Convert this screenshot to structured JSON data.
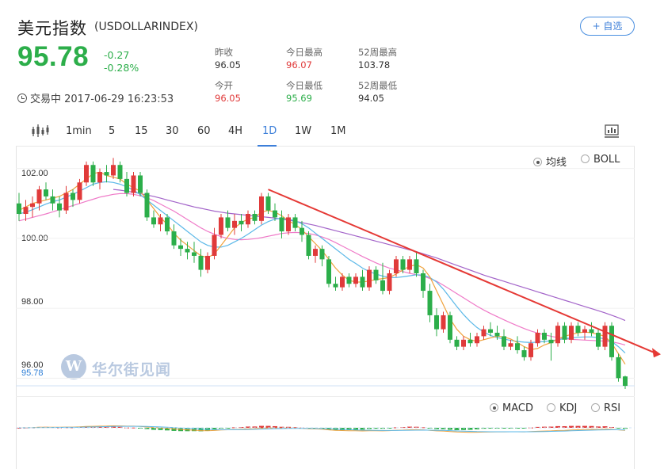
{
  "header": {
    "title": "美元指数",
    "code": "(USDOLLARINDEX)",
    "follow": "+ 自选"
  },
  "quote": {
    "price": "95.78",
    "change": "-0.27",
    "change_pct": "-0.28%",
    "status": "交易中 2017-06-29 16:23:53"
  },
  "stats": [
    {
      "label": "昨收",
      "value": "96.05",
      "color": "dark"
    },
    {
      "label": "今日最高",
      "value": "96.07",
      "color": "red"
    },
    {
      "label": "52周最高",
      "value": "103.78",
      "color": "dark"
    },
    {
      "label": "今开",
      "value": "96.05",
      "color": "red"
    },
    {
      "label": "今日最低",
      "value": "95.69",
      "color": "green"
    },
    {
      "label": "52周最低",
      "value": "94.05",
      "color": "dark"
    }
  ],
  "toolbar": {
    "intervals": [
      "1min",
      "5",
      "15",
      "30",
      "60",
      "4H",
      "1D",
      "1W",
      "1M"
    ],
    "active": "1D"
  },
  "overlay": {
    "ma": "均线",
    "boll": "BOLL",
    "selected": "均线"
  },
  "indicators": {
    "macd": "MACD",
    "kdj": "KDJ",
    "rsi": "RSI",
    "selected": "MACD"
  },
  "watermark": "华尔街见闻",
  "colors": {
    "up": "#e03a3a",
    "down": "#2cae4a",
    "ma5": "#f0a23c",
    "ma10": "#5bb8e8",
    "ma20": "#ef7ac8",
    "ma60": "#a364c9",
    "trend": "#e53935"
  },
  "chart_data": {
    "type": "candlestick",
    "yticks": [
      "102.00",
      "100.00",
      "98.00",
      "96.00"
    ],
    "last_price_label": "95.78",
    "ylim": [
      95.6,
      102.4
    ],
    "candles": [
      [
        101.0,
        101.3,
        100.5,
        100.7
      ],
      [
        100.7,
        101.1,
        100.5,
        100.9
      ],
      [
        100.9,
        101.2,
        100.6,
        101.0
      ],
      [
        101.0,
        101.5,
        100.8,
        101.4
      ],
      [
        101.4,
        101.6,
        101.1,
        101.2
      ],
      [
        101.2,
        101.4,
        100.8,
        101.0
      ],
      [
        101.0,
        101.2,
        100.6,
        100.8
      ],
      [
        100.8,
        101.5,
        100.7,
        101.3
      ],
      [
        101.3,
        101.4,
        100.9,
        101.1
      ],
      [
        101.1,
        101.7,
        101.0,
        101.6
      ],
      [
        101.6,
        102.2,
        101.5,
        102.1
      ],
      [
        102.1,
        102.2,
        101.5,
        101.6
      ],
      [
        101.6,
        102.0,
        101.4,
        101.9
      ],
      [
        101.9,
        102.1,
        101.6,
        101.8
      ],
      [
        101.8,
        102.3,
        101.7,
        102.1
      ],
      [
        102.1,
        102.2,
        101.6,
        101.7
      ],
      [
        101.7,
        101.9,
        101.2,
        101.3
      ],
      [
        101.3,
        101.9,
        101.2,
        101.8
      ],
      [
        101.8,
        101.9,
        101.2,
        101.3
      ],
      [
        101.3,
        101.4,
        100.5,
        100.6
      ],
      [
        100.6,
        100.8,
        100.3,
        100.4
      ],
      [
        100.4,
        100.7,
        100.2,
        100.6
      ],
      [
        100.6,
        100.7,
        100.1,
        100.2
      ],
      [
        100.2,
        100.4,
        99.7,
        99.8
      ],
      [
        99.8,
        100.0,
        99.5,
        99.7
      ],
      [
        99.7,
        99.9,
        99.4,
        99.6
      ],
      [
        99.6,
        99.9,
        99.3,
        99.5
      ],
      [
        99.5,
        99.7,
        98.9,
        99.1
      ],
      [
        99.1,
        99.6,
        99.0,
        99.5
      ],
      [
        99.5,
        100.3,
        99.4,
        100.1
      ],
      [
        100.1,
        100.7,
        100.0,
        100.6
      ],
      [
        100.6,
        100.8,
        100.2,
        100.3
      ],
      [
        100.3,
        100.7,
        100.1,
        100.5
      ],
      [
        100.5,
        100.7,
        100.2,
        100.4
      ],
      [
        100.4,
        100.8,
        100.3,
        100.7
      ],
      [
        100.7,
        100.8,
        100.4,
        100.5
      ],
      [
        100.5,
        101.3,
        100.4,
        101.2
      ],
      [
        101.2,
        101.3,
        100.7,
        100.8
      ],
      [
        100.8,
        101.0,
        100.5,
        100.6
      ],
      [
        100.6,
        100.8,
        100.0,
        100.2
      ],
      [
        100.2,
        100.7,
        100.1,
        100.6
      ],
      [
        100.6,
        100.7,
        100.2,
        100.3
      ],
      [
        100.3,
        100.5,
        99.9,
        100.1
      ],
      [
        100.1,
        100.2,
        99.4,
        99.5
      ],
      [
        99.5,
        99.8,
        99.3,
        99.7
      ],
      [
        99.7,
        99.8,
        99.2,
        99.4
      ],
      [
        99.4,
        99.5,
        98.6,
        98.7
      ],
      [
        98.7,
        98.9,
        98.5,
        98.6
      ],
      [
        98.6,
        99.0,
        98.5,
        98.9
      ],
      [
        98.9,
        99.0,
        98.6,
        98.7
      ],
      [
        98.7,
        99.0,
        98.6,
        98.9
      ],
      [
        98.9,
        99.1,
        98.5,
        98.6
      ],
      [
        98.6,
        99.2,
        98.5,
        99.1
      ],
      [
        99.1,
        99.2,
        98.7,
        98.8
      ],
      [
        98.8,
        99.3,
        98.4,
        98.5
      ],
      [
        98.5,
        99.1,
        98.4,
        99.0
      ],
      [
        99.0,
        99.5,
        98.9,
        99.4
      ],
      [
        99.4,
        99.5,
        99.0,
        99.1
      ],
      [
        99.1,
        99.5,
        99.0,
        99.4
      ],
      [
        99.4,
        99.6,
        98.9,
        99.0
      ],
      [
        99.0,
        99.1,
        98.3,
        98.5
      ],
      [
        98.5,
        98.7,
        97.6,
        97.8
      ],
      [
        97.8,
        98.0,
        97.2,
        97.4
      ],
      [
        97.4,
        97.9,
        97.3,
        97.8
      ],
      [
        97.8,
        97.9,
        97.0,
        97.1
      ],
      [
        97.1,
        97.2,
        96.8,
        96.9
      ],
      [
        96.9,
        97.2,
        96.8,
        97.1
      ],
      [
        97.1,
        97.3,
        96.9,
        97.0
      ],
      [
        97.0,
        97.3,
        96.9,
        97.2
      ],
      [
        97.2,
        97.5,
        97.1,
        97.4
      ],
      [
        97.4,
        97.6,
        97.2,
        97.3
      ],
      [
        97.3,
        97.5,
        97.1,
        97.2
      ],
      [
        97.2,
        97.4,
        96.8,
        96.9
      ],
      [
        96.9,
        97.1,
        96.8,
        97.0
      ],
      [
        97.0,
        97.2,
        96.7,
        96.8
      ],
      [
        96.8,
        96.9,
        96.5,
        96.6
      ],
      [
        96.6,
        97.1,
        96.5,
        97.0
      ],
      [
        97.0,
        97.4,
        96.9,
        97.3
      ],
      [
        97.3,
        97.4,
        97.0,
        97.1
      ],
      [
        97.1,
        97.3,
        96.5,
        97.0
      ],
      [
        97.0,
        97.6,
        96.9,
        97.5
      ],
      [
        97.5,
        97.6,
        97.0,
        97.1
      ],
      [
        97.1,
        97.6,
        97.0,
        97.5
      ],
      [
        97.5,
        97.6,
        97.2,
        97.3
      ],
      [
        97.3,
        97.5,
        97.1,
        97.4
      ],
      [
        97.4,
        97.6,
        97.2,
        97.3
      ],
      [
        97.3,
        97.4,
        96.8,
        96.9
      ],
      [
        96.9,
        97.6,
        96.8,
        97.5
      ],
      [
        97.5,
        97.6,
        96.5,
        96.6
      ],
      [
        96.6,
        96.7,
        95.9,
        96.0
      ],
      [
        96.05,
        96.07,
        95.69,
        95.78
      ]
    ],
    "ma5": [
      100.8,
      100.9,
      101.0,
      101.05,
      101.1,
      101.15,
      101.2,
      101.3,
      101.4,
      101.55,
      101.7,
      101.85,
      101.9,
      101.8,
      101.75,
      101.7,
      101.55,
      101.45,
      101.35,
      101.1,
      100.85,
      100.6,
      100.4,
      100.15,
      99.95,
      99.8,
      99.65,
      99.5,
      99.45,
      99.55,
      99.8,
      100.05,
      100.3,
      100.45,
      100.55,
      100.6,
      100.75,
      100.8,
      100.75,
      100.65,
      100.5,
      100.4,
      100.25,
      100.05,
      99.85,
      99.65,
      99.4,
      99.15,
      98.95,
      98.8,
      98.75,
      98.75,
      98.78,
      98.82,
      98.85,
      98.88,
      98.98,
      99.1,
      99.2,
      99.25,
      99.15,
      98.9,
      98.5,
      98.1,
      97.7,
      97.4,
      97.2,
      97.1,
      97.05,
      97.1,
      97.15,
      97.2,
      97.18,
      97.12,
      97.02,
      96.9,
      96.82,
      96.85,
      96.95,
      97.02,
      97.12,
      97.2,
      97.25,
      97.3,
      97.32,
      97.3,
      97.25,
      97.2,
      97.0,
      96.7,
      96.4
    ],
    "ma10": [
      100.7,
      100.75,
      100.82,
      100.9,
      100.98,
      101.05,
      101.1,
      101.18,
      101.26,
      101.35,
      101.45,
      101.55,
      101.6,
      101.62,
      101.6,
      101.55,
      101.47,
      101.38,
      101.25,
      101.1,
      100.95,
      100.8,
      100.65,
      100.5,
      100.35,
      100.2,
      100.05,
      99.9,
      99.8,
      99.75,
      99.75,
      99.8,
      99.9,
      100.0,
      100.12,
      100.25,
      100.38,
      100.48,
      100.55,
      100.58,
      100.55,
      100.5,
      100.42,
      100.3,
      100.15,
      100.0,
      99.85,
      99.7,
      99.55,
      99.4,
      99.28,
      99.15,
      99.05,
      98.98,
      98.92,
      98.88,
      98.88,
      98.9,
      98.93,
      98.96,
      98.95,
      98.88,
      98.75,
      98.55,
      98.3,
      98.05,
      97.82,
      97.62,
      97.45,
      97.32,
      97.22,
      97.16,
      97.12,
      97.08,
      97.05,
      97.03,
      97.02,
      97.03,
      97.05,
      97.07,
      97.1,
      97.13,
      97.15,
      97.17,
      97.18,
      97.18,
      97.16,
      97.12,
      97.05,
      96.9,
      96.72
    ],
    "ma20": [
      100.5,
      100.55,
      100.6,
      100.65,
      100.7,
      100.76,
      100.82,
      100.88,
      100.94,
      101.0,
      101.06,
      101.12,
      101.18,
      101.22,
      101.26,
      101.28,
      101.28,
      101.26,
      101.22,
      101.16,
      101.08,
      100.98,
      100.88,
      100.78,
      100.66,
      100.54,
      100.42,
      100.3,
      100.2,
      100.12,
      100.05,
      100.0,
      99.97,
      99.96,
      99.97,
      99.99,
      100.02,
      100.06,
      100.1,
      100.14,
      100.16,
      100.17,
      100.16,
      100.14,
      100.1,
      100.04,
      99.97,
      99.88,
      99.78,
      99.68,
      99.58,
      99.48,
      99.39,
      99.3,
      99.22,
      99.15,
      99.1,
      99.05,
      99.0,
      98.96,
      98.92,
      98.85,
      98.77,
      98.66,
      98.54,
      98.42,
      98.3,
      98.18,
      98.06,
      97.95,
      97.85,
      97.76,
      97.67,
      97.58,
      97.5,
      97.42,
      97.35,
      97.29,
      97.24,
      97.2,
      97.16,
      97.13,
      97.11,
      97.1,
      97.09,
      97.08,
      97.07,
      97.06,
      97.04,
      97.0,
      96.95
    ],
    "ma60": [
      null,
      null,
      null,
      null,
      null,
      null,
      null,
      null,
      null,
      null,
      null,
      null,
      null,
      null,
      101.4,
      101.38,
      101.35,
      101.32,
      101.28,
      101.24,
      101.2,
      101.15,
      101.1,
      101.05,
      101.0,
      100.95,
      100.9,
      100.86,
      100.82,
      100.78,
      100.75,
      100.72,
      100.7,
      100.68,
      100.66,
      100.64,
      100.62,
      100.6,
      100.58,
      100.55,
      100.52,
      100.49,
      100.45,
      100.41,
      100.37,
      100.32,
      100.27,
      100.22,
      100.17,
      100.12,
      100.07,
      100.02,
      99.97,
      99.92,
      99.87,
      99.82,
      99.77,
      99.72,
      99.67,
      99.62,
      99.56,
      99.5,
      99.44,
      99.37,
      99.3,
      99.23,
      99.16,
      99.09,
      99.02,
      98.95,
      98.89,
      98.83,
      98.77,
      98.71,
      98.65,
      98.59,
      98.53,
      98.47,
      98.41,
      98.35,
      98.29,
      98.23,
      98.17,
      98.11,
      98.05,
      97.99,
      97.93,
      97.87,
      97.8,
      97.73,
      97.65
    ],
    "trendline": {
      "from_index": 37,
      "from_value": 101.4,
      "to_index": 92,
      "to_value": 96.95
    }
  }
}
